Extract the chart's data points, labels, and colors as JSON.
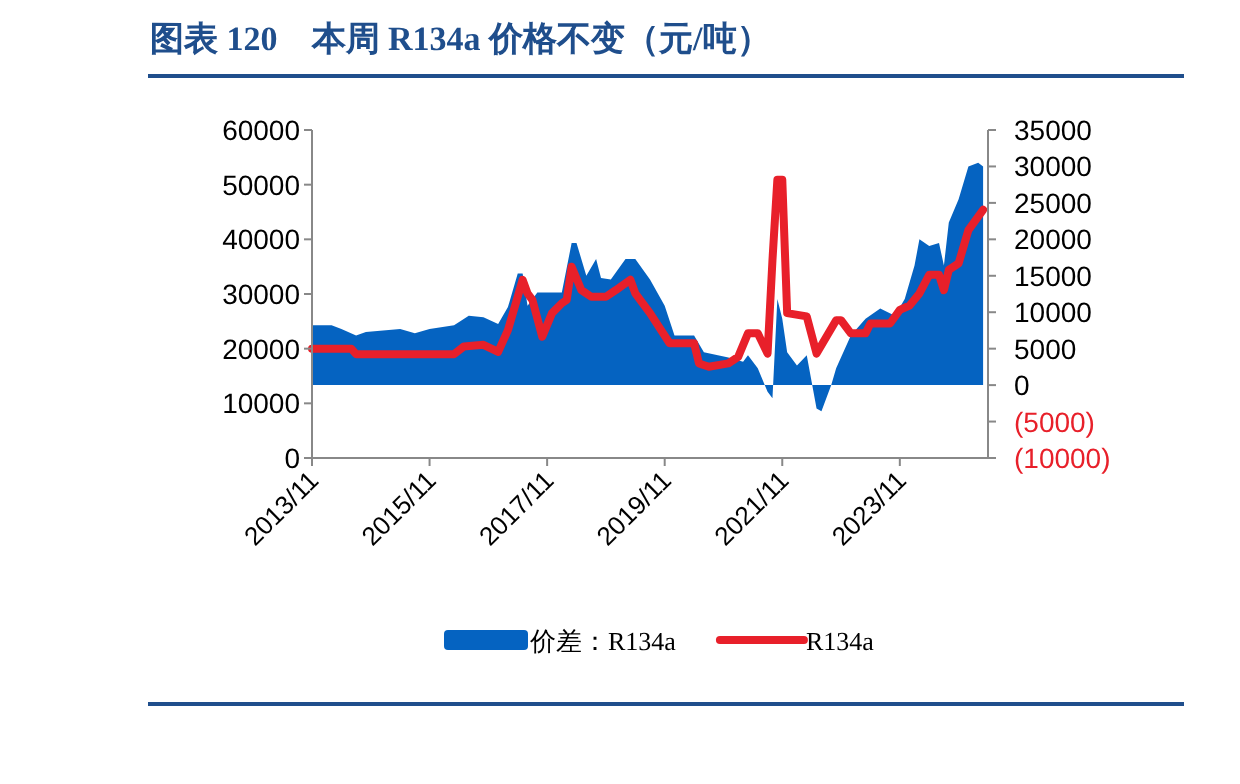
{
  "chart_data": {
    "type": "area",
    "title": "图表 120　本周 R134a 价格不变（元/吨）",
    "xlim": [
      "2013-11",
      "2025-05"
    ],
    "xticks": [
      {
        "value": "2013-11",
        "label": "2013/11"
      },
      {
        "value": "2015-11",
        "label": "2015/11"
      },
      {
        "value": "2017-11",
        "label": "2017/11"
      },
      {
        "value": "2019-11",
        "label": "2019/11"
      },
      {
        "value": "2021-11",
        "label": "2021/11"
      },
      {
        "value": "2023-11",
        "label": "2023/11"
      }
    ],
    "ylim": [
      0,
      60000
    ],
    "yticks": [
      0,
      10000,
      20000,
      30000,
      40000,
      50000,
      60000
    ],
    "y2lim": [
      -10000,
      35000
    ],
    "y2ticks": [
      {
        "value": -10000,
        "label": "(10000)"
      },
      {
        "value": -5000,
        "label": "(5000)"
      },
      0,
      5000,
      10000,
      15000,
      20000,
      25000,
      30000,
      35000
    ],
    "legend": "bottom",
    "grid": false,
    "series": [
      {
        "name": "价差：R134a",
        "axis": "y2",
        "color": "#0563c1",
        "x": [
          "2013-11",
          "2014-03",
          "2014-05",
          "2014-08",
          "2014-10",
          "2015-05",
          "2015-08",
          "2015-11",
          "2016-04",
          "2016-07",
          "2016-10",
          "2017-01",
          "2017-03",
          "2017-05",
          "2017-06",
          "2017-07",
          "2017-09",
          "2017-11",
          "2018-02",
          "2018-04",
          "2018-05",
          "2018-07",
          "2018-09",
          "2018-10",
          "2018-12",
          "2019-03",
          "2019-05",
          "2019-08",
          "2019-11",
          "2020-01",
          "2020-05",
          "2020-07",
          "2020-12",
          "2021-03",
          "2021-04",
          "2021-06",
          "2021-08",
          "2021-09",
          "2021-10",
          "2021-11",
          "2021-12",
          "2022-02",
          "2022-04",
          "2022-06",
          "2022-07",
          "2022-09",
          "2022-10",
          "2023-01",
          "2023-04",
          "2023-07",
          "2023-10",
          "2023-12",
          "2024-02",
          "2024-03",
          "2024-05",
          "2024-07",
          "2024-08",
          "2024-09",
          "2024-11",
          "2025-01",
          "2025-03",
          "2025-04"
        ],
        "values": [
          8200,
          8200,
          7700,
          6800,
          7300,
          7700,
          7100,
          7700,
          8200,
          9500,
          9300,
          8400,
          10700,
          15300,
          15300,
          10900,
          12700,
          12700,
          12700,
          19500,
          19500,
          15000,
          17300,
          14700,
          14500,
          17300,
          17300,
          14500,
          10900,
          6800,
          6800,
          4500,
          3800,
          3200,
          4100,
          2300,
          -900,
          -1800,
          11800,
          9100,
          4500,
          2700,
          4100,
          -3200,
          -3600,
          0,
          2300,
          6800,
          9100,
          10500,
          9500,
          11800,
          16400,
          20000,
          19100,
          19500,
          16400,
          22300,
          25500,
          30000,
          30500,
          30000
        ]
      },
      {
        "name": "R134a",
        "type": "line",
        "color": "#e8202a",
        "line_style": "solid",
        "x": [
          "2013-11",
          "2014-07",
          "2014-08",
          "2016-04",
          "2016-06",
          "2016-10",
          "2017-01",
          "2017-03",
          "2017-06",
          "2017-07",
          "2017-08",
          "2017-10",
          "2017-12",
          "2018-02",
          "2018-03",
          "2018-04",
          "2018-06",
          "2018-08",
          "2018-11",
          "2019-01",
          "2019-04",
          "2019-05",
          "2019-08",
          "2019-12",
          "2020-05",
          "2020-06",
          "2020-08",
          "2020-12",
          "2021-02",
          "2021-04",
          "2021-06",
          "2021-08",
          "2021-09",
          "2021-10",
          "2021-11",
          "2021-12",
          "2022-04",
          "2022-06",
          "2022-10",
          "2022-11",
          "2023-01",
          "2023-04",
          "2023-05",
          "2023-09",
          "2023-11",
          "2024-01",
          "2024-03",
          "2024-05",
          "2024-07",
          "2024-08",
          "2024-09",
          "2024-11",
          "2025-01",
          "2025-04"
        ],
        "values": [
          20000,
          20000,
          19000,
          19000,
          20400,
          20700,
          19400,
          23400,
          32600,
          30100,
          28900,
          22200,
          26500,
          28300,
          28900,
          35000,
          30700,
          29500,
          29500,
          30700,
          32600,
          30100,
          26500,
          21000,
          21000,
          17300,
          16700,
          17300,
          18500,
          22800,
          22800,
          19100,
          36200,
          50900,
          50900,
          26500,
          25900,
          19100,
          25200,
          25200,
          22800,
          22800,
          24600,
          24600,
          27100,
          27900,
          30100,
          33500,
          33500,
          30700,
          34400,
          35600,
          41700,
          45400
        ]
      }
    ]
  }
}
